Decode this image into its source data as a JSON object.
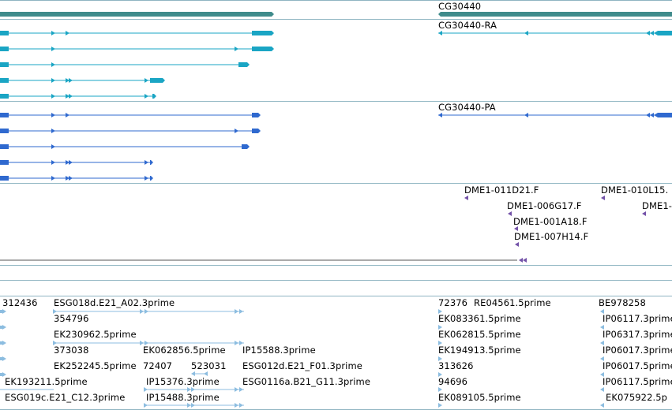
{
  "colors": {
    "gene": "#3f8b8b",
    "transcript_ra": "#1aa5c4",
    "transcript_pa": "#2f69cf",
    "clone": "#7352a8",
    "est": "#8cbde0",
    "divider": "#8fb5c2",
    "line": "#555555"
  },
  "gene_track": {
    "labels": [
      {
        "text": "CG30440"
      }
    ]
  },
  "transcript_track": {
    "labels": [
      {
        "text": "CG30440-RA"
      }
    ]
  },
  "protein_track": {
    "labels": [
      {
        "text": "CG30440-PA"
      }
    ]
  },
  "clone_track": {
    "labels": [
      {
        "text": "DME1-011D21.F"
      },
      {
        "text": "DME1-010L15."
      },
      {
        "text": "DME1-006G17.F"
      },
      {
        "text": "DME1-"
      },
      {
        "text": "DME1-001A18.F"
      },
      {
        "text": "DME1-007H14.F"
      }
    ]
  },
  "est_track": {
    "labels": [
      {
        "text": "312436"
      },
      {
        "text": "ESG018d.E21_A02.3prime"
      },
      {
        "text": "72376"
      },
      {
        "text": "RE04561.5prime"
      },
      {
        "text": "BE978258"
      },
      {
        "text": "354796"
      },
      {
        "text": "EK083361.5prime"
      },
      {
        "text": "IP06117.3prime"
      },
      {
        "text": "EK230962.5prime"
      },
      {
        "text": "EK062815.5prime"
      },
      {
        "text": "IP06317.3prime"
      },
      {
        "text": "373038"
      },
      {
        "text": "EK062856.5prime"
      },
      {
        "text": "IP15588.3prime"
      },
      {
        "text": "EK194913.5prime"
      },
      {
        "text": "IP06017.3prime"
      },
      {
        "text": "EK252245.5prime"
      },
      {
        "text": "72407"
      },
      {
        "text": "523031"
      },
      {
        "text": "ESG012d.E21_F01.3prime"
      },
      {
        "text": "313626"
      },
      {
        "text": "IP06017.5prime"
      },
      {
        "text": "EK193211.5prime"
      },
      {
        "text": "IP15376.3prime"
      },
      {
        "text": "ESG0116a.B21_G11.3prime"
      },
      {
        "text": "94696"
      },
      {
        "text": "IP06117.5prime"
      },
      {
        "text": "ESG019c.E21_C12.3prime"
      },
      {
        "text": "IP15488.3prime"
      },
      {
        "text": "EK089105.5prime"
      },
      {
        "text": "EK075922.5p"
      }
    ]
  }
}
